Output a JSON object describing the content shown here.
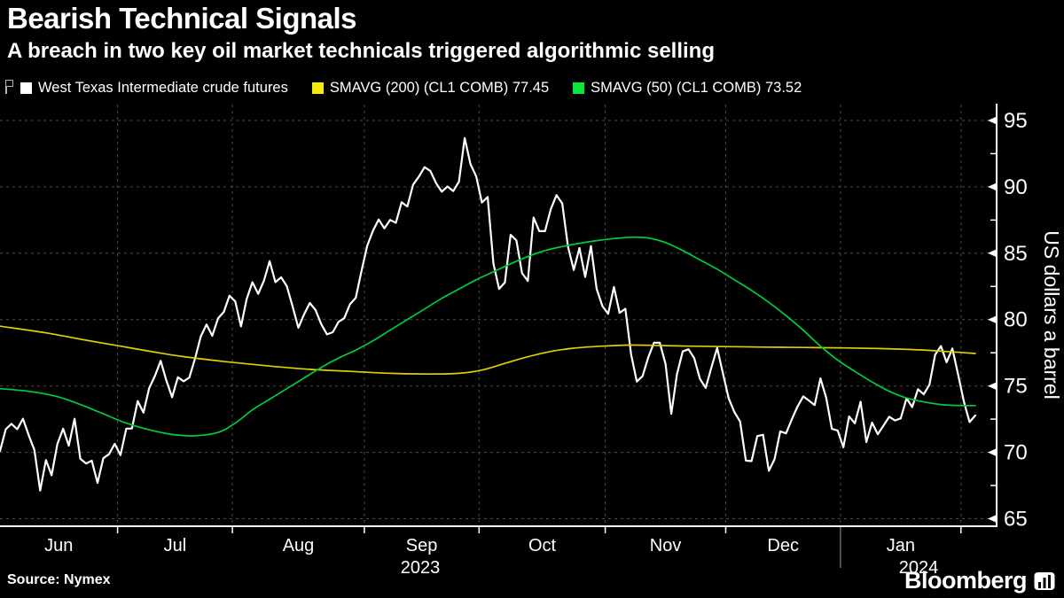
{
  "header": {
    "title": "Bearish Technical Signals",
    "subtitle": "A breach in two key oil market technicals triggered algorithmic selling"
  },
  "legend": {
    "items": [
      {
        "label": "West Texas Intermediate crude futures",
        "color": "#ffffff"
      },
      {
        "label": "SMAVG (200) (CL1 COMB) 77.45",
        "color": "#f5eb0a"
      },
      {
        "label": "SMAVG (50) (CL1 COMB) 73.52",
        "color": "#0be53c"
      }
    ]
  },
  "footer": {
    "source": "Source: Nymex",
    "brand": "Bloomberg"
  },
  "colors": {
    "background": "#000000",
    "axis": "#ffffff",
    "grid": "#4b4b4b",
    "year_divider": "#9a9a9a",
    "tick_label": "#ffffff"
  },
  "chart_data": {
    "type": "line",
    "ylabel": "US dollars a barrel",
    "ylim": [
      64.5,
      96.2
    ],
    "yticks": [
      65,
      70,
      75,
      80,
      85,
      90,
      95
    ],
    "yticks_minor": [
      67.5,
      72.5,
      77.5,
      82.5,
      87.5,
      92.5
    ],
    "grid": true,
    "legend_position": "top",
    "x_months": [
      {
        "label": "Jun",
        "days": 21
      },
      {
        "label": "Jul",
        "days": 20
      },
      {
        "label": "Aug",
        "days": 23
      },
      {
        "label": "Sep",
        "days": 20
      },
      {
        "label": "Oct",
        "days": 22
      },
      {
        "label": "Nov",
        "days": 21
      },
      {
        "label": "Dec",
        "days": 20
      },
      {
        "label": "Jan",
        "days": 21
      },
      {
        "label": "",
        "days": 3
      }
    ],
    "years": [
      {
        "label": "2023",
        "from_month": 0,
        "to_month": 6
      },
      {
        "label": "2024",
        "from_month": 7,
        "to_month": 8
      }
    ],
    "series": [
      {
        "name": "West Texas Intermediate crude futures",
        "color": "#ffffff",
        "width": 2.2,
        "values": [
          70.1,
          71.74,
          72.15,
          71.74,
          72.53,
          71.29,
          70.17,
          67.12,
          69.42,
          68.27,
          70.62,
          71.78,
          70.5,
          72.53,
          69.51,
          69.16,
          69.37,
          67.7,
          69.56,
          69.86,
          70.64,
          69.79,
          71.79,
          71.8,
          73.86,
          72.99,
          74.83,
          75.75,
          76.89,
          75.42,
          74.15,
          75.66,
          75.35,
          75.63,
          77.07,
          78.74,
          79.63,
          78.78,
          80.09,
          80.58,
          81.8,
          81.37,
          79.49,
          81.55,
          82.82,
          81.94,
          82.92,
          84.4,
          82.82,
          83.19,
          82.51,
          80.99,
          79.38,
          80.39,
          81.25,
          80.72,
          79.64,
          78.89,
          79.05,
          79.83,
          80.1,
          81.16,
          81.63,
          83.63,
          85.55,
          86.69,
          87.54,
          86.87,
          87.51,
          87.29,
          88.84,
          88.52,
          90.16,
          90.77,
          91.48,
          91.2,
          90.28,
          89.63,
          90.03,
          89.68,
          90.39,
          93.68,
          91.71,
          90.79,
          88.82,
          89.23,
          84.22,
          82.31,
          82.79,
          86.38,
          85.97,
          83.49,
          82.91,
          87.69,
          86.66,
          86.66,
          88.32,
          89.37,
          88.75,
          85.49,
          83.74,
          85.39,
          83.21,
          85.54,
          82.31,
          81.02,
          80.44,
          82.46,
          80.51,
          80.82,
          77.37,
          75.33,
          75.74,
          77.17,
          78.26,
          78.26,
          76.66,
          72.9,
          75.89,
          77.6,
          77.77,
          77.1,
          75.54,
          74.86,
          76.41,
          77.86,
          75.96,
          74.07,
          73.04,
          72.32,
          69.38,
          69.34,
          71.23,
          71.32,
          68.61,
          69.47,
          71.58,
          71.43,
          72.47,
          73.44,
          74.22,
          73.89,
          73.56,
          75.57,
          74.11,
          71.77,
          71.65,
          70.38,
          72.7,
          72.19,
          73.81,
          70.77,
          72.24,
          71.37,
          72.02,
          72.68,
          72.4,
          72.56,
          74.08,
          73.41,
          74.76,
          74.37,
          75.09,
          77.36,
          78.01,
          76.78,
          77.82,
          75.85,
          73.82,
          72.28,
          72.78
        ]
      },
      {
        "name": "SMAVG (200) (CL1 COMB) 77.45",
        "color": "#e1cf00",
        "width": 1.7,
        "points": [
          [
            0,
            79.5
          ],
          [
            8,
            79.0
          ],
          [
            15,
            78.45
          ],
          [
            21,
            78.0
          ],
          [
            27,
            77.55
          ],
          [
            33,
            77.15
          ],
          [
            40,
            76.8
          ],
          [
            47,
            76.5
          ],
          [
            54,
            76.25
          ],
          [
            61,
            76.1
          ],
          [
            68,
            75.95
          ],
          [
            75,
            75.9
          ],
          [
            80,
            75.95
          ],
          [
            84,
            76.2
          ],
          [
            88,
            76.7
          ],
          [
            92,
            77.2
          ],
          [
            96,
            77.6
          ],
          [
            100,
            77.85
          ],
          [
            105,
            78.0
          ],
          [
            110,
            78.08
          ],
          [
            115,
            78.05
          ],
          [
            120,
            78.0
          ],
          [
            126,
            77.97
          ],
          [
            133,
            77.93
          ],
          [
            140,
            77.9
          ],
          [
            147,
            77.87
          ],
          [
            153,
            77.82
          ],
          [
            158,
            77.76
          ],
          [
            162,
            77.68
          ],
          [
            166,
            77.57
          ],
          [
            170,
            77.45
          ]
        ]
      },
      {
        "name": "SMAVG (50) (CL1 COMB) 73.52",
        "color": "#00cc41",
        "width": 1.7,
        "points": [
          [
            0,
            74.8
          ],
          [
            5,
            74.6
          ],
          [
            10,
            74.2
          ],
          [
            14,
            73.6
          ],
          [
            18,
            72.9
          ],
          [
            22,
            72.2
          ],
          [
            26,
            71.7
          ],
          [
            30,
            71.35
          ],
          [
            34,
            71.25
          ],
          [
            38,
            71.5
          ],
          [
            41,
            72.2
          ],
          [
            44,
            73.2
          ],
          [
            47,
            74.0
          ],
          [
            50,
            74.8
          ],
          [
            53,
            75.6
          ],
          [
            56,
            76.4
          ],
          [
            59,
            77.1
          ],
          [
            62,
            77.7
          ],
          [
            65,
            78.4
          ],
          [
            68,
            79.2
          ],
          [
            71,
            80.0
          ],
          [
            74,
            80.8
          ],
          [
            77,
            81.6
          ],
          [
            80,
            82.3
          ],
          [
            83,
            83.0
          ],
          [
            86,
            83.6
          ],
          [
            89,
            84.2
          ],
          [
            92,
            84.75
          ],
          [
            95,
            85.2
          ],
          [
            98,
            85.5
          ],
          [
            101,
            85.75
          ],
          [
            104,
            85.95
          ],
          [
            107,
            86.1
          ],
          [
            110,
            86.2
          ],
          [
            113,
            86.15
          ],
          [
            116,
            85.8
          ],
          [
            119,
            85.2
          ],
          [
            122,
            84.5
          ],
          [
            125,
            83.8
          ],
          [
            128,
            83.0
          ],
          [
            131,
            82.2
          ],
          [
            134,
            81.3
          ],
          [
            137,
            80.3
          ],
          [
            140,
            79.2
          ],
          [
            143,
            78.0
          ],
          [
            146,
            76.95
          ],
          [
            149,
            76.1
          ],
          [
            152,
            75.3
          ],
          [
            155,
            74.6
          ],
          [
            158,
            74.1
          ],
          [
            161,
            73.8
          ],
          [
            164,
            73.6
          ],
          [
            167,
            73.53
          ],
          [
            170,
            73.52
          ]
        ]
      }
    ]
  }
}
